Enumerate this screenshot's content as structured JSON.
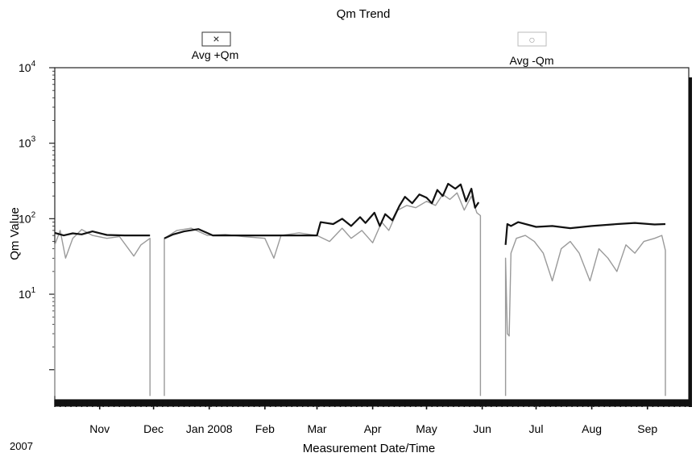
{
  "chart_data": {
    "type": "line",
    "title": "Qm Trend",
    "xlabel": "Measurement Date/Time",
    "ylabel": "Qm Value",
    "year_label": "2007",
    "y_scale": "log",
    "ylim": [
      0.4,
      10000
    ],
    "xlim": [
      "2007-10-07",
      "2008-09-24"
    ],
    "y_ticks": [
      {
        "value": 10,
        "base": "10",
        "exp": "1"
      },
      {
        "value": 100,
        "base": "10",
        "exp": "2"
      },
      {
        "value": 1000,
        "base": "10",
        "exp": "3"
      },
      {
        "value": 10000,
        "base": "10",
        "exp": "4"
      }
    ],
    "x_ticks": [
      {
        "date": "2007-11-01",
        "label": "Nov"
      },
      {
        "date": "2007-12-01",
        "label": "Dec"
      },
      {
        "date": "2008-01-01",
        "label": "Jan 2008"
      },
      {
        "date": "2008-02-01",
        "label": "Feb"
      },
      {
        "date": "2008-03-01",
        "label": "Mar"
      },
      {
        "date": "2008-04-01",
        "label": "Apr"
      },
      {
        "date": "2008-05-01",
        "label": "May"
      },
      {
        "date": "2008-06-01",
        "label": "Jun"
      },
      {
        "date": "2008-07-01",
        "label": "Jul"
      },
      {
        "date": "2008-08-01",
        "label": "Aug"
      },
      {
        "date": "2008-09-01",
        "label": "Sep"
      }
    ],
    "legend": [
      {
        "label": "Avg +Qm",
        "marker": "×",
        "color": "#111111"
      },
      {
        "label": "Avg -Qm",
        "marker": "○",
        "color": "#9a9a9a"
      }
    ],
    "series": [
      {
        "name": "Avg +Qm",
        "color": "#111111",
        "segments": [
          [
            [
              "2007-10-07",
              65
            ],
            [
              "2007-10-12",
              60
            ],
            [
              "2007-10-17",
              64
            ],
            [
              "2007-10-22",
              62
            ],
            [
              "2007-10-28",
              68
            ],
            [
              "2007-11-05",
              61
            ],
            [
              "2007-11-15",
              60
            ],
            [
              "2007-11-25",
              60
            ],
            [
              "2007-11-29",
              60
            ]
          ],
          [
            [
              "2007-12-07",
              55
            ],
            [
              "2007-12-12",
              62
            ],
            [
              "2007-12-18",
              68
            ],
            [
              "2007-12-26",
              73
            ],
            [
              "2008-01-03",
              60
            ],
            [
              "2008-01-15",
              60
            ],
            [
              "2008-02-01",
              60
            ],
            [
              "2008-02-15",
              60
            ],
            [
              "2008-03-01",
              60
            ],
            [
              "2008-03-03",
              90
            ],
            [
              "2008-03-10",
              85
            ],
            [
              "2008-03-15",
              100
            ],
            [
              "2008-03-20",
              80
            ],
            [
              "2008-03-25",
              105
            ],
            [
              "2008-03-28",
              88
            ],
            [
              "2008-04-02",
              120
            ],
            [
              "2008-04-05",
              80
            ],
            [
              "2008-04-08",
              115
            ],
            [
              "2008-04-12",
              95
            ],
            [
              "2008-04-16",
              150
            ],
            [
              "2008-04-19",
              195
            ],
            [
              "2008-04-23",
              160
            ],
            [
              "2008-04-27",
              210
            ],
            [
              "2008-05-01",
              190
            ],
            [
              "2008-05-04",
              160
            ],
            [
              "2008-05-07",
              240
            ],
            [
              "2008-05-10",
              200
            ],
            [
              "2008-05-13",
              290
            ],
            [
              "2008-05-17",
              250
            ],
            [
              "2008-05-20",
              285
            ],
            [
              "2008-05-23",
              170
            ],
            [
              "2008-05-26",
              250
            ],
            [
              "2008-05-28",
              140
            ],
            [
              "2008-05-30",
              165
            ]
          ],
          [
            [
              "2008-06-14",
              45
            ],
            [
              "2008-06-15",
              85
            ],
            [
              "2008-06-17",
              80
            ],
            [
              "2008-06-21",
              90
            ],
            [
              "2008-07-01",
              78
            ],
            [
              "2008-07-10",
              80
            ],
            [
              "2008-07-20",
              75
            ],
            [
              "2008-08-01",
              80
            ],
            [
              "2008-08-15",
              85
            ],
            [
              "2008-08-25",
              88
            ],
            [
              "2008-09-05",
              84
            ],
            [
              "2008-09-11",
              85
            ]
          ]
        ]
      },
      {
        "name": "Avg -Qm",
        "color": "#9a9a9a",
        "segments": [
          [
            [
              "2007-10-07",
              0.45
            ],
            [
              "2007-10-07",
              45
            ],
            [
              "2007-10-10",
              70
            ],
            [
              "2007-10-13",
              30
            ],
            [
              "2007-10-17",
              55
            ],
            [
              "2007-10-22",
              72
            ],
            [
              "2007-10-28",
              60
            ],
            [
              "2007-11-05",
              55
            ],
            [
              "2007-11-12",
              58
            ],
            [
              "2007-11-20",
              32
            ],
            [
              "2007-11-24",
              45
            ],
            [
              "2007-11-29",
              55
            ],
            [
              "2007-11-29",
              0.45
            ]
          ],
          [
            [
              "2007-12-07",
              0.45
            ],
            [
              "2007-12-07",
              55
            ],
            [
              "2007-12-14",
              70
            ],
            [
              "2007-12-22",
              75
            ],
            [
              "2007-12-31",
              60
            ],
            [
              "2008-01-10",
              62
            ],
            [
              "2008-01-20",
              58
            ],
            [
              "2008-02-01",
              55
            ],
            [
              "2008-02-06",
              30
            ],
            [
              "2008-02-10",
              60
            ],
            [
              "2008-02-20",
              65
            ],
            [
              "2008-03-01",
              60
            ],
            [
              "2008-03-08",
              50
            ],
            [
              "2008-03-15",
              75
            ],
            [
              "2008-03-20",
              55
            ],
            [
              "2008-03-26",
              70
            ],
            [
              "2008-04-01",
              48
            ],
            [
              "2008-04-06",
              90
            ],
            [
              "2008-04-10",
              70
            ],
            [
              "2008-04-15",
              130
            ],
            [
              "2008-04-20",
              150
            ],
            [
              "2008-04-25",
              140
            ],
            [
              "2008-05-01",
              170
            ],
            [
              "2008-05-06",
              150
            ],
            [
              "2008-05-10",
              210
            ],
            [
              "2008-05-14",
              180
            ],
            [
              "2008-05-18",
              220
            ],
            [
              "2008-05-22",
              130
            ],
            [
              "2008-05-26",
              200
            ],
            [
              "2008-05-29",
              120
            ],
            [
              "2008-05-31",
              110
            ],
            [
              "2008-05-31",
              0.45
            ]
          ],
          [
            [
              "2008-06-14",
              0.45
            ],
            [
              "2008-06-14",
              30
            ],
            [
              "2008-06-15",
              3
            ],
            [
              "2008-06-16",
              2.8
            ],
            [
              "2008-06-17",
              35
            ],
            [
              "2008-06-20",
              55
            ],
            [
              "2008-06-25",
              60
            ],
            [
              "2008-06-30",
              50
            ],
            [
              "2008-07-05",
              35
            ],
            [
              "2008-07-10",
              15
            ],
            [
              "2008-07-15",
              40
            ],
            [
              "2008-07-20",
              50
            ],
            [
              "2008-07-25",
              35
            ],
            [
              "2008-07-31",
              15
            ],
            [
              "2008-08-05",
              40
            ],
            [
              "2008-08-10",
              30
            ],
            [
              "2008-08-15",
              20
            ],
            [
              "2008-08-20",
              45
            ],
            [
              "2008-08-25",
              35
            ],
            [
              "2008-08-30",
              50
            ],
            [
              "2008-09-05",
              55
            ],
            [
              "2008-09-09",
              60
            ],
            [
              "2008-09-11",
              38
            ],
            [
              "2008-09-11",
              0.45
            ]
          ]
        ]
      }
    ],
    "grid": false,
    "legend_position": "top"
  }
}
